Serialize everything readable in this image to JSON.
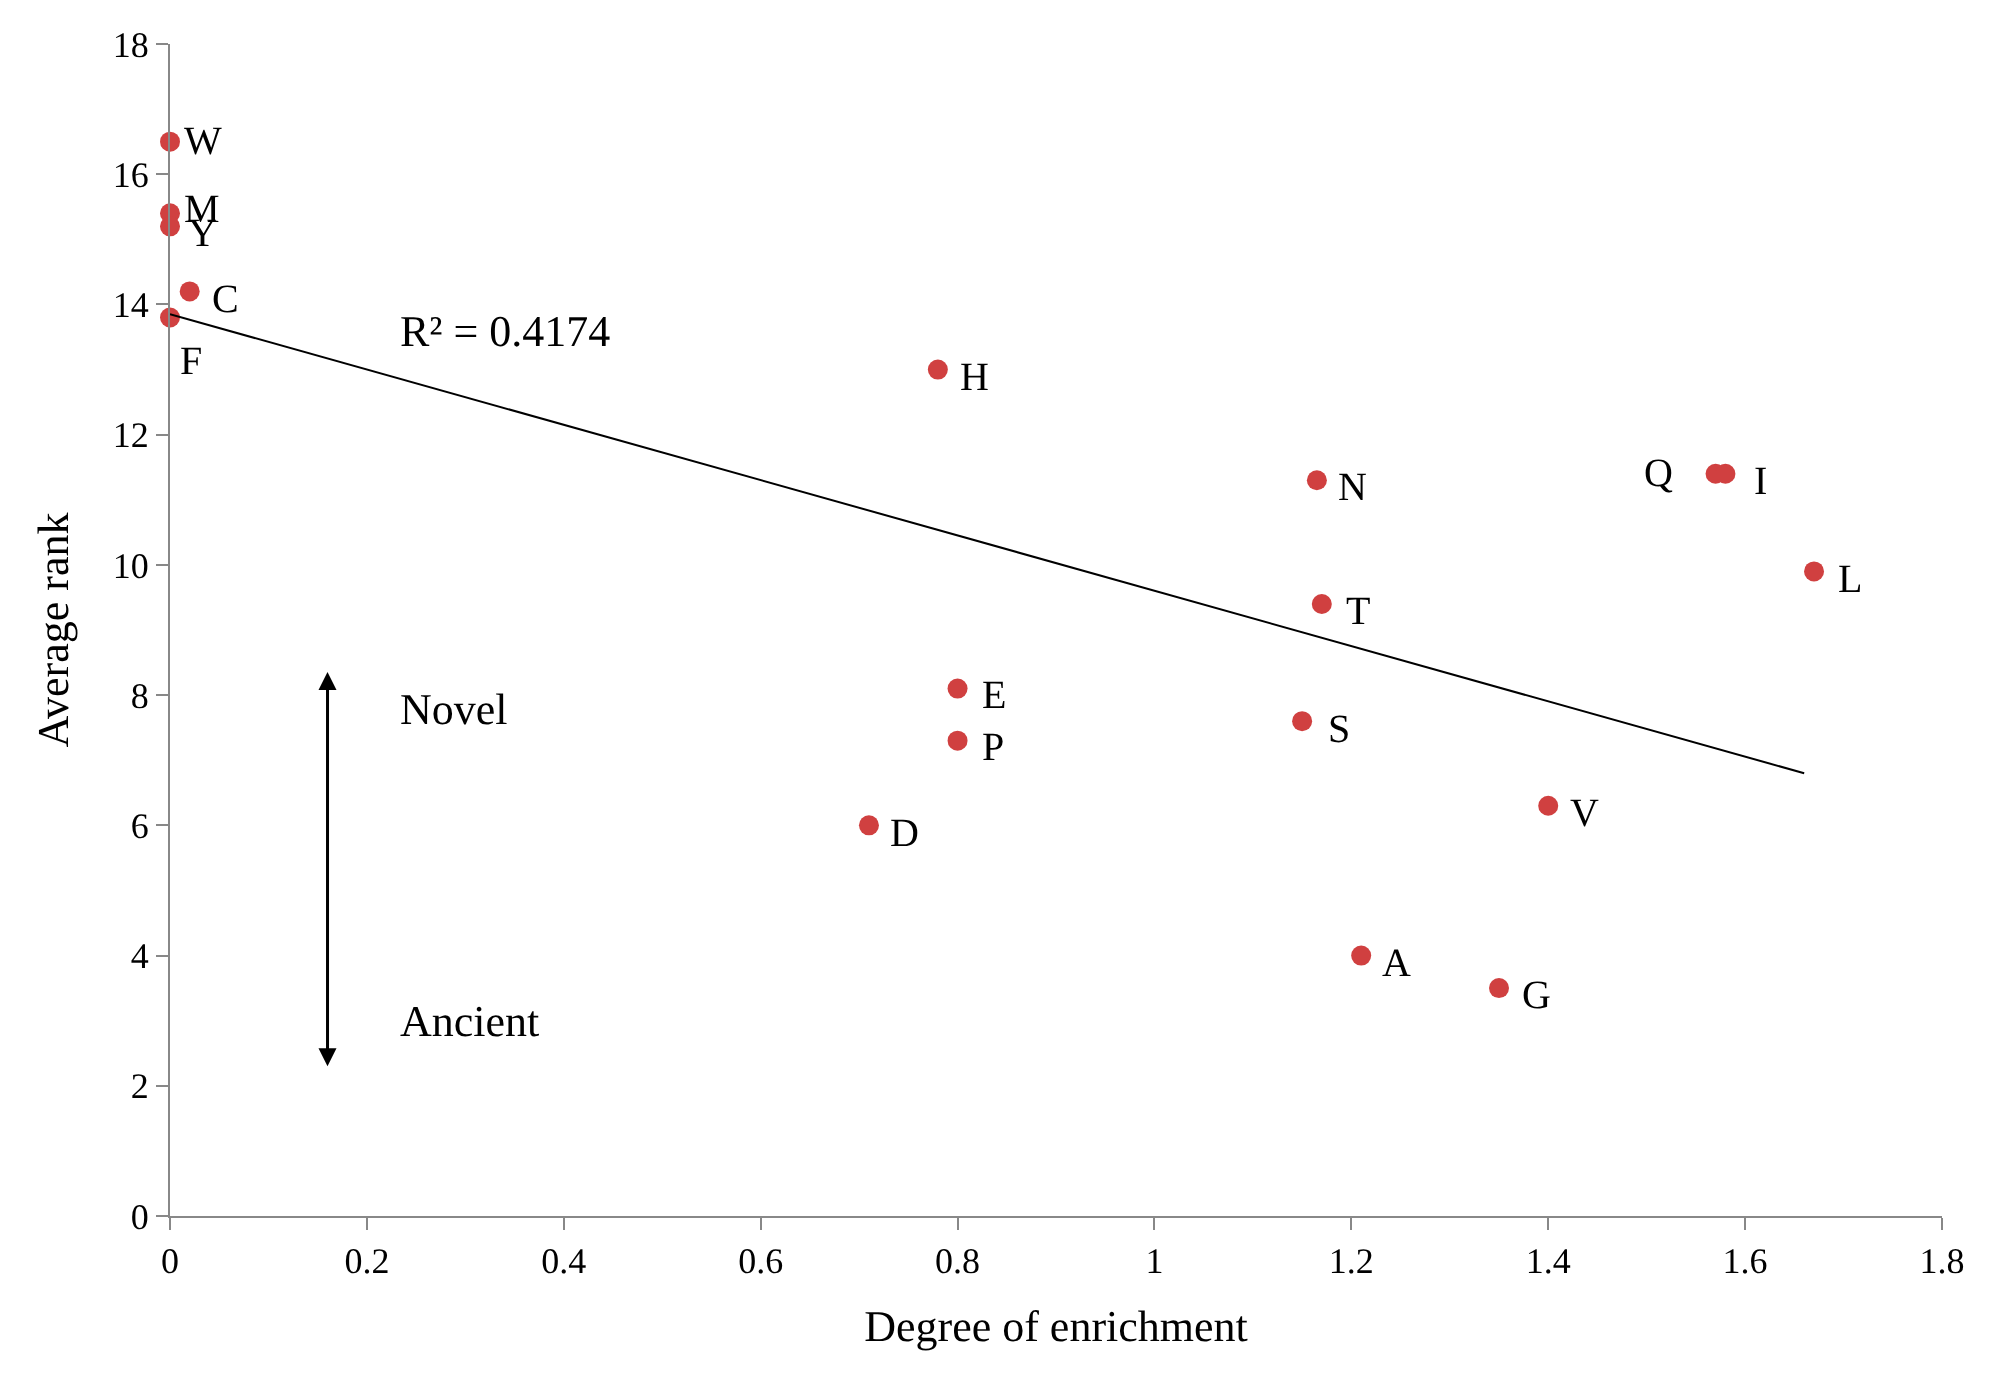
{
  "chart_data": {
    "type": "scatter",
    "xlabel": "Degree of enrichment",
    "ylabel": "Average rank",
    "xlim": [
      0,
      1.8
    ],
    "xticks": [
      0,
      0.2,
      0.4,
      0.6,
      0.8,
      1,
      1.2,
      1.4,
      1.6,
      1.8
    ],
    "ylim": [
      0,
      18
    ],
    "yticks": [
      0,
      2,
      4,
      6,
      8,
      10,
      12,
      14,
      16,
      18
    ],
    "series": [
      {
        "marker": "circle",
        "color": "#d04040",
        "x": [
          0,
          0,
          0,
          0.02,
          0,
          0.78,
          1.165,
          1.57,
          1.58,
          1.67,
          1.17,
          0.8,
          0.8,
          1.15,
          0.71,
          1.4,
          1.21,
          1.35
        ],
        "values": [
          16.5,
          15.4,
          15.2,
          14.2,
          13.8,
          13.0,
          11.3,
          11.4,
          11.4,
          9.9,
          9.4,
          8.1,
          7.3,
          7.6,
          6.0,
          6.3,
          4.0,
          3.5
        ]
      },
      {
        "type": "line",
        "marker": "none",
        "color": "#000000",
        "x": [
          0,
          1.66
        ],
        "values": [
          13.85,
          6.8
        ]
      }
    ],
    "annotations": [
      {
        "text": "W",
        "x": 0,
        "y": 16.5
      },
      {
        "text": "M",
        "x": 0,
        "y": 15.4
      },
      {
        "text": "Y",
        "x": 0,
        "y": 15.2
      },
      {
        "text": "C",
        "x": 0.02,
        "y": 14.2
      },
      {
        "text": "F",
        "x": 0,
        "y": 13.8
      },
      {
        "text": "H",
        "x": 0.78,
        "y": 13.0
      },
      {
        "text": "N",
        "x": 1.165,
        "y": 11.3
      },
      {
        "text": "Q",
        "x": 1.57,
        "y": 11.4
      },
      {
        "text": "I",
        "x": 1.58,
        "y": 11.4
      },
      {
        "text": "L",
        "x": 1.67,
        "y": 9.9
      },
      {
        "text": "T",
        "x": 1.17,
        "y": 9.4
      },
      {
        "text": "E",
        "x": 0.8,
        "y": 8.1
      },
      {
        "text": "P",
        "x": 0.8,
        "y": 7.3
      },
      {
        "text": "S",
        "x": 1.15,
        "y": 7.6
      },
      {
        "text": "D",
        "x": 0.71,
        "y": 6.0
      },
      {
        "text": "V",
        "x": 1.4,
        "y": 6.3
      },
      {
        "text": "A",
        "x": 1.21,
        "y": 4.0
      },
      {
        "text": "G",
        "x": 1.35,
        "y": 3.5
      },
      "R² = 0.4174",
      "Novel",
      "Ancient"
    ]
  }
}
